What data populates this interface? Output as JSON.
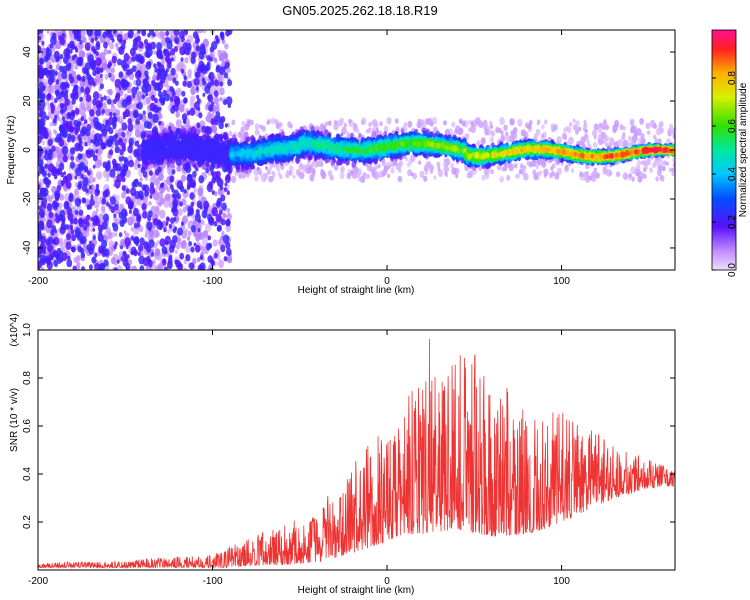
{
  "title": "GN05.2025.262.18.18.R19",
  "chart_data": [
    {
      "type": "heatmap",
      "xlabel": "Height of straight line (km)",
      "ylabel": "Frequency (Hz)",
      "xlim": [
        -200,
        165
      ],
      "ylim": [
        -49,
        49
      ],
      "x_ticks": [
        "-200",
        "-100",
        "0",
        "100"
      ],
      "y_ticks": [
        "-40",
        "-20",
        "0",
        "20",
        "40"
      ],
      "colorbar": {
        "label": "Normalized spectral amplitude",
        "range": [
          0,
          1
        ],
        "ticks": [
          "0.0",
          "0.2",
          "0.4",
          "0.6",
          "0.8"
        ]
      },
      "grid": false
    },
    {
      "type": "line",
      "xlabel": "Height of straight line (km)",
      "ylabel": "SNR (10 * v/v)",
      "y_multiplier": "(x10^4)",
      "xlim": [
        -200,
        165
      ],
      "ylim": [
        0,
        1.0
      ],
      "x_ticks": [
        "-200",
        "-100",
        "0",
        "100"
      ],
      "y_ticks": [
        "0.2",
        "0.4",
        "0.6",
        "0.8",
        "1.0"
      ],
      "series": [
        {
          "color": "#ee3333",
          "envelope": {
            "x": [
              -200,
              -150,
              -120,
              -100,
              -90,
              -75,
              -60,
              -45,
              -35,
              -25,
              -10,
              0,
              10,
              20,
              25,
              30,
              40,
              50,
              60,
              70,
              80,
              90,
              100,
              115,
              130,
              150,
              165
            ],
            "low": [
              0.01,
              0.01,
              0.01,
              0.01,
              0.01,
              0.02,
              0.02,
              0.03,
              0.04,
              0.06,
              0.09,
              0.12,
              0.15,
              0.15,
              0.16,
              0.16,
              0.17,
              0.15,
              0.14,
              0.14,
              0.15,
              0.17,
              0.2,
              0.25,
              0.3,
              0.34,
              0.35
            ],
            "high": [
              0.03,
              0.04,
              0.06,
              0.07,
              0.1,
              0.15,
              0.18,
              0.24,
              0.3,
              0.38,
              0.55,
              0.6,
              0.72,
              0.8,
              1.0,
              0.85,
              0.95,
              0.92,
              0.82,
              0.75,
              0.7,
              0.72,
              0.66,
              0.6,
              0.52,
              0.46,
              0.42
            ]
          }
        }
      ]
    }
  ]
}
